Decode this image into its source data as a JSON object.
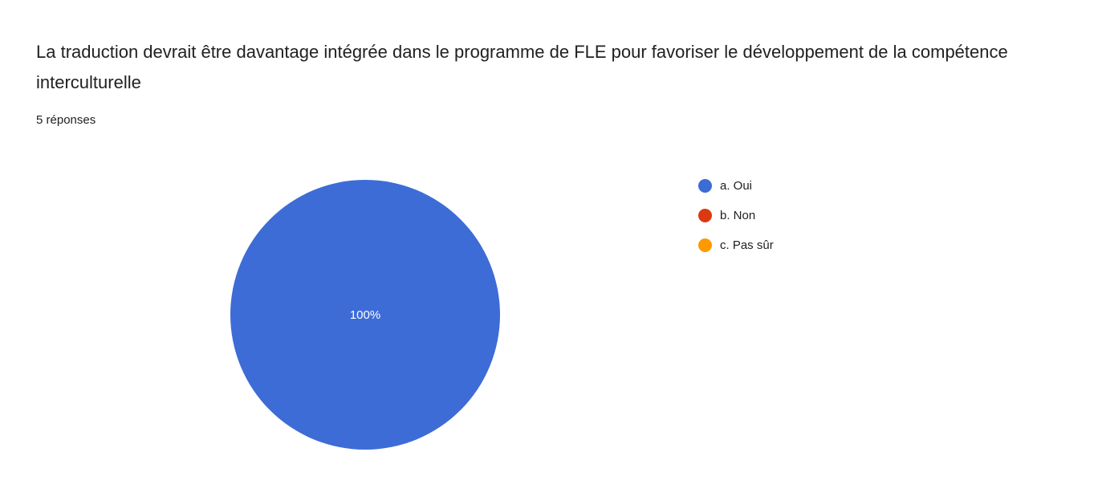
{
  "chart": {
    "title": "La traduction devrait être davantage intégrée dans le programme de FLE pour favoriser le développement de la compétence interculturelle",
    "subtitle": "5 réponses",
    "center_label": "100%"
  },
  "chart_data": {
    "type": "pie",
    "title": "La traduction devrait être davantage intégrée dans le programme de FLE pour favoriser le développement de la compétence interculturelle",
    "subtitle": "5 réponses",
    "responses_count": 5,
    "labels": [
      "a. Oui",
      "b. Non",
      "c. Pas sûr"
    ],
    "values": [
      100,
      0,
      0
    ],
    "value_unit": "percent",
    "slice_label": "100%",
    "colors": [
      "#3D6CD6",
      "#DC3912",
      "#FF9900"
    ],
    "legend_position": "right",
    "grid": false
  }
}
